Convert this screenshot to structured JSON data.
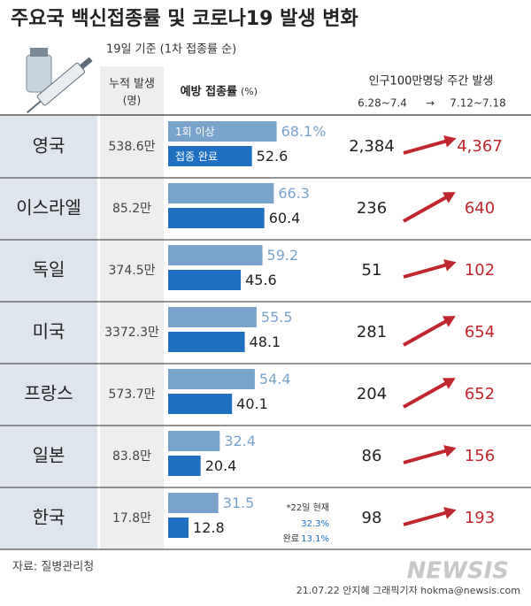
{
  "chart_data": {
    "type": "bar",
    "title": "주요국 백신접종률 및 코로나19 발생 변화",
    "subtitle": "19일 기준 (1차 접종률 순)",
    "categories": [
      "영국",
      "이스라엘",
      "독일",
      "미국",
      "프랑스",
      "일본",
      "한국"
    ],
    "cumulative_header": "누적 발생",
    "cumulative_unit": "(명)",
    "cumulative": [
      "538.6만",
      "85.2만",
      "374.5만",
      "3372.3만",
      "573.7만",
      "83.8만",
      "17.8만"
    ],
    "bar_header": "예방 접종률",
    "bar_unit": "(%)",
    "xlim": [
      0,
      100
    ],
    "series": [
      {
        "name": "1회 이상",
        "color": "#7aa3cc",
        "values": [
          68.1,
          66.3,
          59.2,
          55.5,
          54.4,
          32.4,
          31.5
        ],
        "value_labels": [
          "68.1%",
          "66.3",
          "59.2",
          "55.5",
          "54.4",
          "32.4",
          "31.5"
        ]
      },
      {
        "name": "접종 완료",
        "color": "#1f70c1",
        "values": [
          52.6,
          60.4,
          45.6,
          48.1,
          40.1,
          20.4,
          12.8
        ]
      }
    ],
    "weekly_header": "인구100만명당 주간 발생",
    "period_from": "6.28~7.4",
    "period_arrow": "→",
    "period_to": "7.12~7.18",
    "weekly_before": [
      "2,384",
      "236",
      "51",
      "281",
      "204",
      "86",
      "98"
    ],
    "weekly_after": [
      "4,367",
      "640",
      "102",
      "654",
      "652",
      "156",
      "193"
    ],
    "note": {
      "date": "*22일 현재",
      "first": "32.3%",
      "done_label": "완료",
      "done": "13.1%"
    },
    "source": "자료: 질병관리청",
    "credit": "21.07.22 안지혜 그래픽기자 hokma@newsis.com",
    "logo": "NEWSIS"
  }
}
